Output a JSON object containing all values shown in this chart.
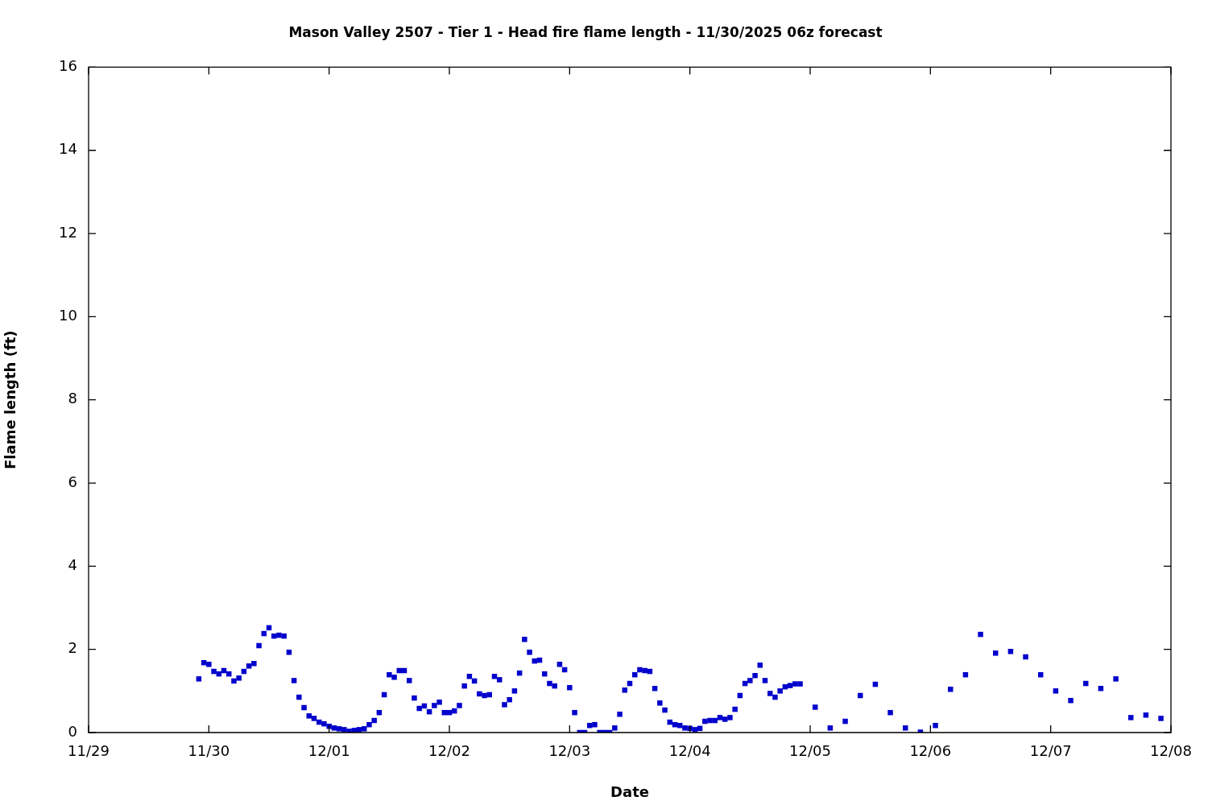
{
  "chart_data": {
    "type": "scatter",
    "title": "Mason Valley 2507 - Tier 1 - Head fire flame length - 11/30/2025 06z forecast",
    "xlabel": "Date",
    "ylabel": "Flame length (ft)",
    "xlim": [
      "2025-11-29",
      "2025-12-08"
    ],
    "xticks": [
      {
        "value": "2025-11-29",
        "label": "11/29"
      },
      {
        "value": "2025-11-30",
        "label": "11/30"
      },
      {
        "value": "2025-12-01",
        "label": "12/01"
      },
      {
        "value": "2025-12-02",
        "label": "12/02"
      },
      {
        "value": "2025-12-03",
        "label": "12/03"
      },
      {
        "value": "2025-12-04",
        "label": "12/04"
      },
      {
        "value": "2025-12-05",
        "label": "12/05"
      },
      {
        "value": "2025-12-06",
        "label": "12/06"
      },
      {
        "value": "2025-12-07",
        "label": "12/07"
      },
      {
        "value": "2025-12-08",
        "label": "12/08"
      }
    ],
    "ylim": [
      0,
      16
    ],
    "yticks": [
      0,
      2,
      4,
      6,
      8,
      10,
      12,
      14,
      16
    ],
    "grid": false,
    "legend": false,
    "marker": "square",
    "x": [
      "2025-11-29T22:00",
      "2025-11-29T23:00",
      "2025-11-30T00:00",
      "2025-11-30T01:00",
      "2025-11-30T02:00",
      "2025-11-30T03:00",
      "2025-11-30T04:00",
      "2025-11-30T05:00",
      "2025-11-30T06:00",
      "2025-11-30T07:00",
      "2025-11-30T08:00",
      "2025-11-30T09:00",
      "2025-11-30T10:00",
      "2025-11-30T11:00",
      "2025-11-30T12:00",
      "2025-11-30T13:00",
      "2025-11-30T14:00",
      "2025-11-30T15:00",
      "2025-11-30T16:00",
      "2025-11-30T17:00",
      "2025-11-30T18:00",
      "2025-11-30T19:00",
      "2025-11-30T20:00",
      "2025-11-30T21:00",
      "2025-11-30T22:00",
      "2025-11-30T23:00",
      "2025-12-01T00:00",
      "2025-12-01T01:00",
      "2025-12-01T02:00",
      "2025-12-01T03:00",
      "2025-12-01T04:00",
      "2025-12-01T05:00",
      "2025-12-01T06:00",
      "2025-12-01T07:00",
      "2025-12-01T08:00",
      "2025-12-01T09:00",
      "2025-12-01T10:00",
      "2025-12-01T11:00",
      "2025-12-01T12:00",
      "2025-12-01T13:00",
      "2025-12-01T14:00",
      "2025-12-01T15:00",
      "2025-12-01T16:00",
      "2025-12-01T17:00",
      "2025-12-01T18:00",
      "2025-12-01T19:00",
      "2025-12-01T20:00",
      "2025-12-01T21:00",
      "2025-12-01T22:00",
      "2025-12-01T23:00",
      "2025-12-02T00:00",
      "2025-12-02T01:00",
      "2025-12-02T02:00",
      "2025-12-02T03:00",
      "2025-12-02T04:00",
      "2025-12-02T05:00",
      "2025-12-02T06:00",
      "2025-12-02T07:00",
      "2025-12-02T08:00",
      "2025-12-02T09:00",
      "2025-12-02T10:00",
      "2025-12-02T11:00",
      "2025-12-02T12:00",
      "2025-12-02T13:00",
      "2025-12-02T14:00",
      "2025-12-02T15:00",
      "2025-12-02T16:00",
      "2025-12-02T17:00",
      "2025-12-02T18:00",
      "2025-12-02T19:00",
      "2025-12-02T20:00",
      "2025-12-02T21:00",
      "2025-12-02T22:00",
      "2025-12-02T23:00",
      "2025-12-03T00:00",
      "2025-12-03T01:00",
      "2025-12-03T02:00",
      "2025-12-03T03:00",
      "2025-12-03T04:00",
      "2025-12-03T05:00",
      "2025-12-03T06:00",
      "2025-12-03T07:00",
      "2025-12-03T08:00",
      "2025-12-03T09:00",
      "2025-12-03T10:00",
      "2025-12-03T11:00",
      "2025-12-03T12:00",
      "2025-12-03T13:00",
      "2025-12-03T14:00",
      "2025-12-03T15:00",
      "2025-12-03T16:00",
      "2025-12-03T17:00",
      "2025-12-03T18:00",
      "2025-12-03T19:00",
      "2025-12-03T20:00",
      "2025-12-03T21:00",
      "2025-12-03T22:00",
      "2025-12-03T23:00",
      "2025-12-04T00:00",
      "2025-12-04T01:00",
      "2025-12-04T02:00",
      "2025-12-04T03:00",
      "2025-12-04T04:00",
      "2025-12-04T05:00",
      "2025-12-04T06:00",
      "2025-12-04T07:00",
      "2025-12-04T08:00",
      "2025-12-04T09:00",
      "2025-12-04T10:00",
      "2025-12-04T11:00",
      "2025-12-04T12:00",
      "2025-12-04T13:00",
      "2025-12-04T14:00",
      "2025-12-04T15:00",
      "2025-12-04T16:00",
      "2025-12-04T17:00",
      "2025-12-04T18:00",
      "2025-12-04T19:00",
      "2025-12-04T20:00",
      "2025-12-04T21:00",
      "2025-12-04T22:00",
      "2025-12-05T01:00",
      "2025-12-05T04:00",
      "2025-12-05T07:00",
      "2025-12-05T10:00",
      "2025-12-05T13:00",
      "2025-12-05T16:00",
      "2025-12-05T19:00",
      "2025-12-05T22:00",
      "2025-12-06T01:00",
      "2025-12-06T04:00",
      "2025-12-06T07:00",
      "2025-12-06T10:00",
      "2025-12-06T13:00",
      "2025-12-06T16:00",
      "2025-12-06T19:00",
      "2025-12-06T22:00",
      "2025-12-07T01:00",
      "2025-12-07T04:00",
      "2025-12-07T07:00",
      "2025-12-07T10:00",
      "2025-12-07T13:00",
      "2025-12-07T16:00",
      "2025-12-07T19:00",
      "2025-12-07T22:00"
    ],
    "series": [
      {
        "color": "#0000cc",
        "values": [
          1.29,
          1.68,
          1.64,
          1.47,
          1.41,
          1.49,
          1.41,
          1.24,
          1.31,
          1.47,
          1.6,
          1.66,
          2.09,
          2.38,
          2.52,
          2.32,
          2.34,
          2.32,
          1.93,
          1.25,
          0.85,
          0.6,
          0.4,
          0.34,
          0.25,
          0.21,
          0.15,
          0.11,
          0.09,
          0.07,
          0.03,
          0.05,
          0.07,
          0.09,
          0.19,
          0.29,
          0.48,
          0.91,
          1.39,
          1.33,
          1.49,
          1.49,
          1.25,
          0.83,
          0.58,
          0.64,
          0.5,
          0.65,
          0.73,
          0.48,
          0.48,
          0.52,
          0.65,
          1.12,
          1.35,
          1.24,
          0.93,
          0.89,
          0.91,
          1.35,
          1.27,
          0.67,
          0.79,
          1.0,
          1.43,
          2.24,
          1.93,
          1.72,
          1.74,
          1.41,
          1.18,
          1.12,
          1.64,
          1.51,
          1.08,
          0.48,
          0,
          0,
          0.17,
          0.19,
          0,
          0,
          0,
          0.11,
          0.44,
          1.02,
          1.18,
          1.39,
          1.51,
          1.49,
          1.47,
          1.06,
          0.71,
          0.54,
          0.25,
          0.19,
          0.17,
          0.11,
          0.1,
          0.07,
          0.1,
          0.27,
          0.29,
          0.29,
          0.36,
          0.32,
          0.36,
          0.56,
          0.89,
          1.18,
          1.25,
          1.37,
          1.62,
          1.25,
          0.94,
          0.85,
          1.0,
          1.1,
          1.13,
          1.17,
          1.17,
          0.61,
          0.11,
          0.27,
          0.89,
          1.16,
          0.48,
          0.11,
          0.01,
          0.17,
          1.04,
          1.39,
          2.36,
          1.91,
          1.95,
          1.82,
          1.39,
          1.0,
          0.77,
          1.18,
          1.06,
          1.29,
          0.36,
          0.42,
          0.34
        ]
      }
    ]
  }
}
